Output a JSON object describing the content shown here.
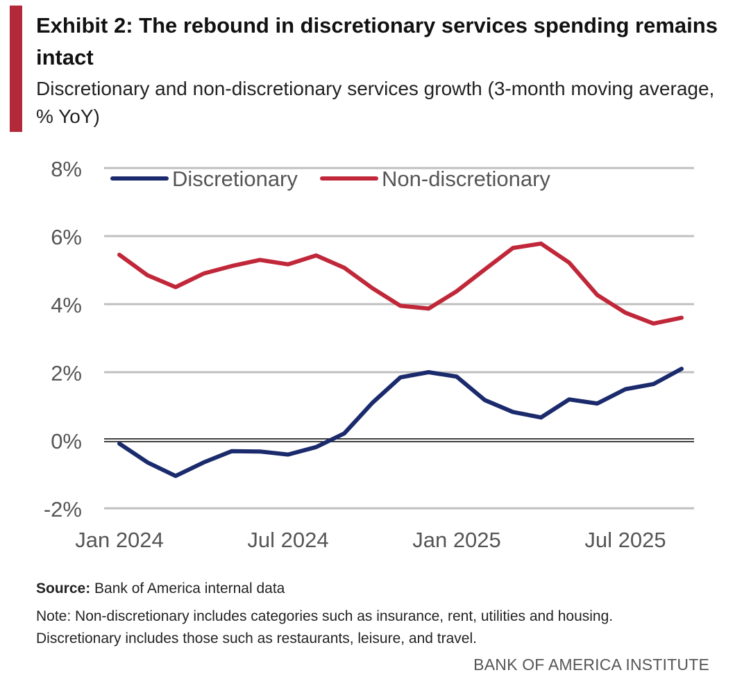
{
  "header": {
    "title": "Exhibit 2: The rebound in discretionary services spending remains intact",
    "subtitle": "Discretionary and non-discretionary services growth (3-month moving average, % YoY)"
  },
  "chart_data": {
    "type": "line",
    "title": "Exhibit 2: The rebound in discretionary services spending remains intact",
    "subtitle": "Discretionary and non-discretionary services growth (3-month moving average, % YoY)",
    "xlabel": "",
    "ylabel": "",
    "x": [
      "2024-01",
      "2024-02",
      "2024-03",
      "2024-04",
      "2024-05",
      "2024-06",
      "2024-07",
      "2024-08",
      "2024-09",
      "2024-10",
      "2024-11",
      "2024-12",
      "2025-01",
      "2025-02",
      "2025-03",
      "2025-04",
      "2025-05",
      "2025-06",
      "2025-07",
      "2025-08",
      "2025-09"
    ],
    "x_ticks": [
      {
        "index": 0,
        "label": "Jan 2024"
      },
      {
        "index": 6,
        "label": "Jul 2024"
      },
      {
        "index": 12,
        "label": "Jan 2025"
      },
      {
        "index": 18,
        "label": "Jul 2025"
      }
    ],
    "y_ticks": [
      {
        "value": -2,
        "label": "-2%"
      },
      {
        "value": 0,
        "label": "0%"
      },
      {
        "value": 2,
        "label": "2%"
      },
      {
        "value": 4,
        "label": "4%"
      },
      {
        "value": 6,
        "label": "6%"
      },
      {
        "value": 8,
        "label": "8%"
      }
    ],
    "ylim": [
      -2,
      8
    ],
    "grid": true,
    "legend_position": "top-left",
    "series": [
      {
        "name": "Discretionary",
        "color": "#1a2a6c",
        "values": [
          -0.1,
          -0.65,
          -1.05,
          -0.65,
          -0.32,
          -0.33,
          -0.42,
          -0.2,
          0.2,
          1.1,
          1.85,
          2.0,
          1.87,
          1.18,
          0.83,
          0.67,
          1.2,
          1.08,
          1.5,
          1.65,
          2.1
        ]
      },
      {
        "name": "Non-discretionary",
        "color": "#c0283a",
        "values": [
          5.45,
          4.85,
          4.5,
          4.9,
          5.12,
          5.3,
          5.17,
          5.43,
          5.07,
          4.47,
          3.95,
          3.87,
          4.38,
          5.02,
          5.65,
          5.78,
          5.22,
          4.27,
          3.75,
          3.43,
          3.6
        ]
      }
    ]
  },
  "footer": {
    "source_label": "Source:",
    "source_text": " Bank of America internal data",
    "note_line1": "Note: Non-discretionary includes categories such as insurance, rent, utilities and housing.",
    "note_line2": "Discretionary includes those such as restaurants, leisure, and travel.",
    "brand": "BANK OF AMERICA INSTITUTE"
  },
  "colors": {
    "accent": "#b22a3a",
    "gridline": "#bfbfbf",
    "axis_text": "#555555"
  }
}
